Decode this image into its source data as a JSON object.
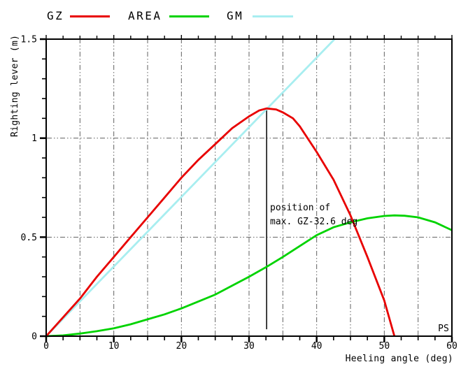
{
  "legend": {
    "items": [
      {
        "label": "GZ",
        "color": "#e80000"
      },
      {
        "label": "AREA",
        "color": "#00d300"
      },
      {
        "label": "GM",
        "color": "#a8eef0"
      }
    ]
  },
  "chart_data": {
    "type": "line",
    "title": "",
    "xlabel": "Heeling angle (deg)",
    "ylabel": "Righting lever (m)",
    "xlim": [
      0,
      60
    ],
    "ylim": [
      0,
      1.5
    ],
    "x_minor_step": 2.5,
    "x_major_step": 10,
    "y_minor_step": 0.1,
    "y_major_step": 0.5,
    "grid_on": true,
    "grid_color": "#606060",
    "x_gridlines": [
      5,
      10,
      15,
      20,
      25,
      30,
      35,
      40,
      45,
      50,
      55
    ],
    "y_gridlines": [
      0.5,
      1.0
    ],
    "x_ticks": [
      {
        "v": 0,
        "label": "0"
      },
      {
        "v": 10,
        "label": "10"
      },
      {
        "v": 20,
        "label": "20"
      },
      {
        "v": 30,
        "label": "30"
      },
      {
        "v": 40,
        "label": "40"
      },
      {
        "v": 50,
        "label": "50"
      },
      {
        "v": 60,
        "label": "60"
      }
    ],
    "y_ticks": [
      {
        "v": 0,
        "label": "0"
      },
      {
        "v": 0.5,
        "label": "0.5"
      },
      {
        "v": 1,
        "label": "1"
      },
      {
        "v": 1.5,
        "label": "1.5"
      }
    ],
    "legend_position": "top",
    "series": [
      {
        "name": "GZ",
        "color": "#e80000",
        "points": [
          [
            0,
            0
          ],
          [
            2.5,
            0.095
          ],
          [
            5,
            0.19
          ],
          [
            7.5,
            0.3
          ],
          [
            10,
            0.4
          ],
          [
            12.5,
            0.5
          ],
          [
            15,
            0.6
          ],
          [
            17.5,
            0.7
          ],
          [
            20,
            0.8
          ],
          [
            22.5,
            0.89
          ],
          [
            25,
            0.97
          ],
          [
            27.5,
            1.05
          ],
          [
            30,
            1.11
          ],
          [
            31.5,
            1.14
          ],
          [
            32.6,
            1.15
          ],
          [
            34,
            1.145
          ],
          [
            35,
            1.13
          ],
          [
            36.5,
            1.1
          ],
          [
            37.5,
            1.06
          ],
          [
            40,
            0.93
          ],
          [
            42.5,
            0.79
          ],
          [
            45,
            0.61
          ],
          [
            47.5,
            0.4
          ],
          [
            50,
            0.18
          ],
          [
            51.5,
            0
          ]
        ]
      },
      {
        "name": "AREA",
        "color": "#00d300",
        "points": [
          [
            0,
            0
          ],
          [
            2.5,
            0.004
          ],
          [
            5,
            0.013
          ],
          [
            7.5,
            0.025
          ],
          [
            10,
            0.04
          ],
          [
            12.5,
            0.06
          ],
          [
            15,
            0.085
          ],
          [
            17.5,
            0.11
          ],
          [
            20,
            0.14
          ],
          [
            22.5,
            0.175
          ],
          [
            25,
            0.21
          ],
          [
            27.5,
            0.255
          ],
          [
            30,
            0.3
          ],
          [
            32.6,
            0.35
          ],
          [
            35,
            0.4
          ],
          [
            37.5,
            0.455
          ],
          [
            40,
            0.51
          ],
          [
            42.5,
            0.55
          ],
          [
            45,
            0.575
          ],
          [
            47.5,
            0.595
          ],
          [
            50,
            0.607
          ],
          [
            51.5,
            0.61
          ],
          [
            53,
            0.608
          ],
          [
            55,
            0.6
          ],
          [
            57.5,
            0.575
          ],
          [
            60,
            0.535
          ]
        ]
      },
      {
        "name": "GM",
        "color": "#a8eef0",
        "points": [
          [
            0,
            0
          ],
          [
            42.65,
            1.5
          ]
        ]
      }
    ],
    "max_gz_marker": {
      "x": 32.6,
      "y_bottom": 0.035,
      "y_top": 1.148,
      "color": "#000000"
    },
    "annotation": {
      "line1": "position of",
      "line2": "max. GZ-32.6 deg"
    },
    "corner_label": "PS"
  }
}
